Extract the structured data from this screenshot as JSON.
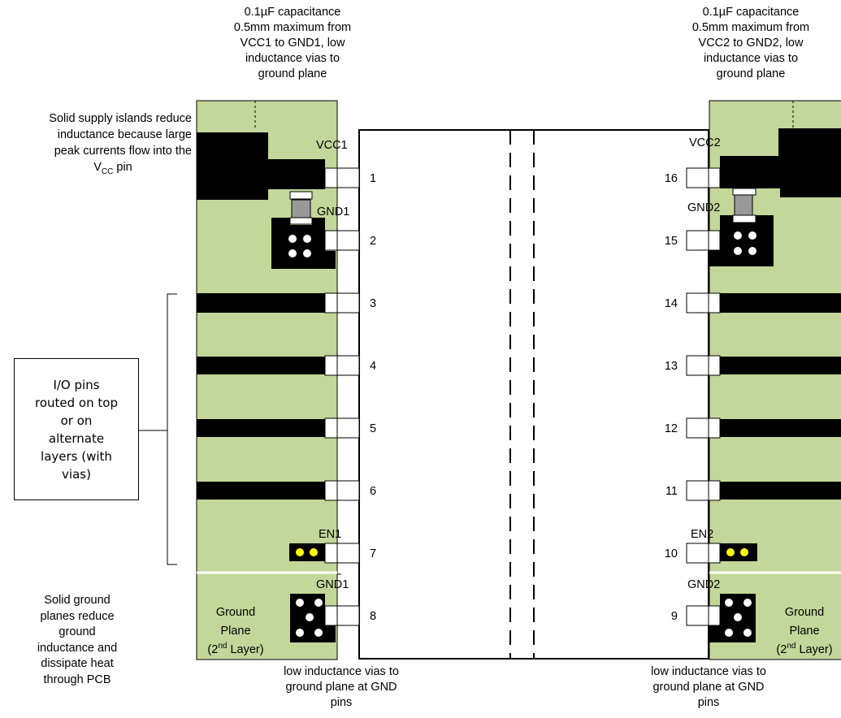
{
  "colors": {
    "plane": "#c4d79b",
    "trace": "#000000",
    "capacitor": "#999999",
    "yellow_via": "#ffff00"
  },
  "annotations": {
    "cap_left": [
      "0.1µF capacitance",
      "0.5mm maximum from",
      "VCC1 to GND1, low",
      "inductance vias to",
      "ground plane"
    ],
    "cap_right": [
      "0.1µF capacitance",
      "0.5mm maximum from",
      "VCC2 to GND2, low",
      "inductance vias to",
      "ground plane"
    ],
    "supply_islands": [
      "Solid supply islands reduce",
      "inductance because large",
      "peak currents flow into the"
    ],
    "supply_islands_last": {
      "pre": "V",
      "sub": "CC",
      "post": " pin"
    },
    "io_pins": [
      "I/O pins",
      "routed on top",
      "or on",
      "alternate",
      "layers (with",
      "vias)"
    ],
    "ground_planes": [
      "Solid ground",
      "planes reduce",
      "ground",
      "inductance and",
      "dissipate heat",
      "through PCB"
    ],
    "vias_left": [
      "low inductance vias to",
      "ground plane at GND",
      "pins"
    ],
    "vias_right": [
      "low inductance vias to",
      "ground plane at GND",
      "pins"
    ]
  },
  "labels": {
    "vcc1": "VCC1",
    "gnd1_top": "GND1",
    "en1": "EN1",
    "gnd1_bottom": "GND1",
    "vcc2": "VCC2",
    "gnd2_top": "GND2",
    "en2": "EN2",
    "gnd2_bottom": "GND2",
    "ground_plane_left": [
      "Ground",
      "Plane",
      "(2",
      "nd",
      " Layer)"
    ],
    "ground_plane_right": [
      "Ground",
      "Plane",
      "(2",
      "nd",
      " Layer)"
    ]
  },
  "pins_left": [
    "1",
    "2",
    "3",
    "4",
    "5",
    "6",
    "7",
    "8"
  ],
  "pins_right": [
    "16",
    "15",
    "14",
    "13",
    "12",
    "11",
    "10",
    "9"
  ]
}
